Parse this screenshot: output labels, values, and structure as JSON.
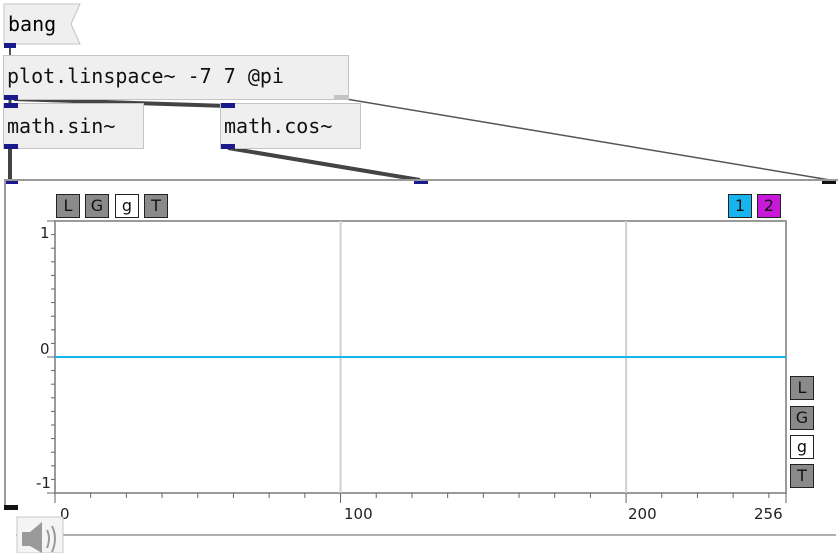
{
  "objects": {
    "bang": "bang",
    "linspace": "plot.linspace~ -7 7 @pi",
    "sin": "math.sin~",
    "cos": "math.cos~"
  },
  "plot": {
    "top_toolbar": [
      "L",
      "G",
      "g",
      "T"
    ],
    "series_buttons": [
      "1",
      "2"
    ],
    "side_toolbar": [
      "L",
      "G",
      "g",
      "T"
    ],
    "y_ticks": [
      "1",
      "0",
      "-1"
    ],
    "x_ticks": [
      "0",
      "100",
      "200",
      "256"
    ],
    "colors": {
      "series1": "#18b4ee",
      "series2": "#c818d8",
      "grid": "#cfcfcf"
    }
  },
  "chart_data": {
    "type": "line",
    "x": [
      0,
      256
    ],
    "series": [
      {
        "name": "1",
        "values": [
          0,
          0
        ]
      }
    ],
    "xlim": [
      0,
      256
    ],
    "ylim": [
      -1,
      1
    ],
    "grid": true
  },
  "icons": {
    "speaker": "speaker-icon"
  }
}
